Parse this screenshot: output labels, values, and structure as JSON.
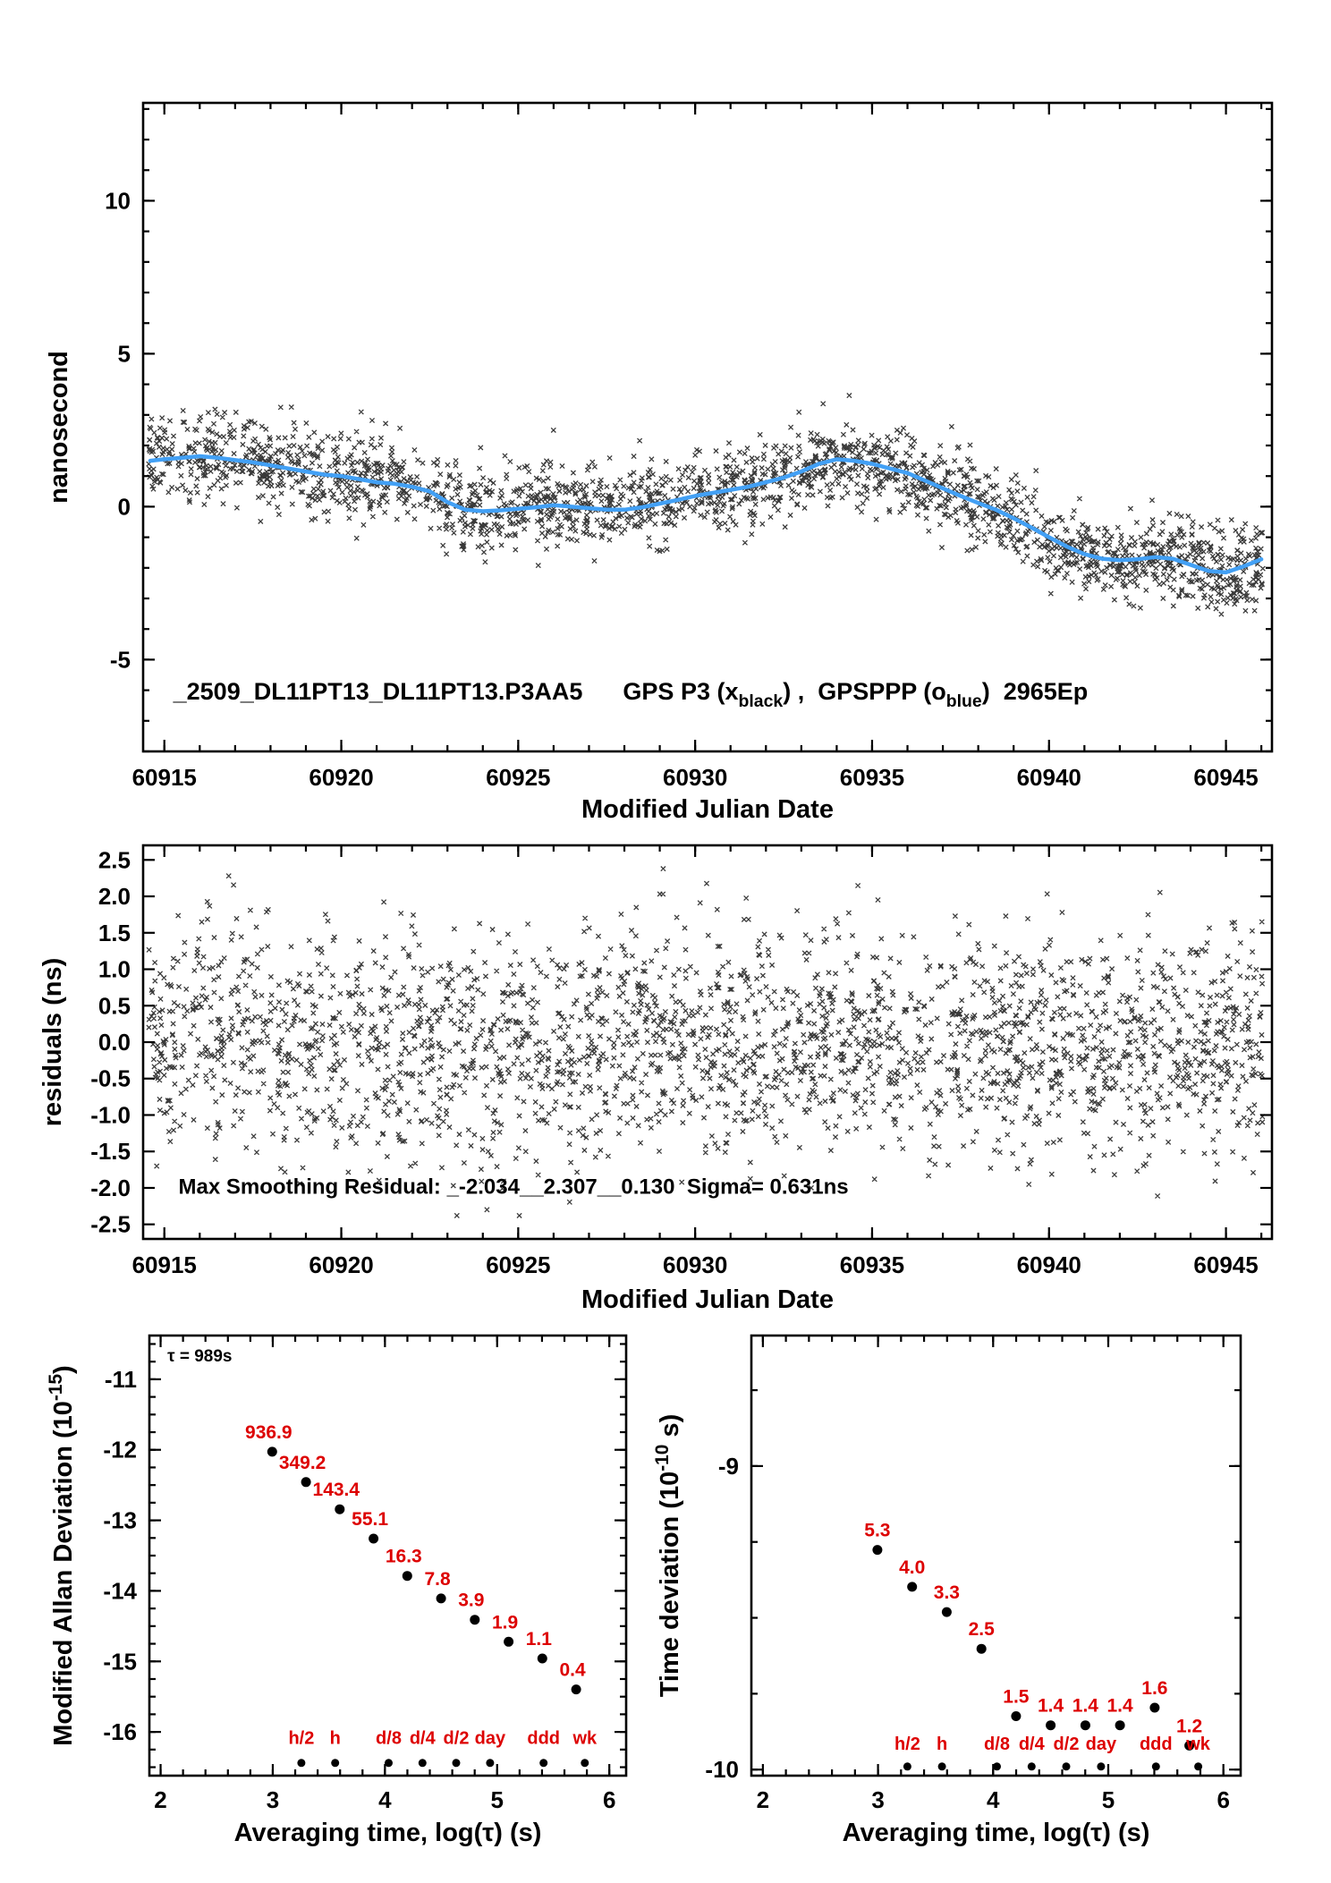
{
  "page": {
    "background": "#ffffff"
  },
  "colors": {
    "marker": "#161616",
    "smooth_line": "#42a0f5",
    "red": "#dd0000",
    "axis": "#000000",
    "point": "#000000"
  },
  "chart_data": [
    {
      "id": "gps-comparison",
      "type": "scatter",
      "marker": "x",
      "xlabel": "Modified Julian Date",
      "ylabel": "nanosecond",
      "xlim": [
        60914.4,
        60946.3
      ],
      "ylim": [
        -8.0,
        13.2
      ],
      "xticks": {
        "values": [
          60915,
          60920,
          60925,
          60930,
          60935,
          60940,
          60945
        ],
        "labels": [
          "60915",
          "60920",
          "60925",
          "60930",
          "60935",
          "60940",
          "60945"
        ],
        "minor_step": 1
      },
      "yticks": {
        "values": [
          -5,
          0,
          5,
          10
        ],
        "labels": [
          "-5",
          "0",
          "5",
          "10"
        ],
        "minor_step": 1
      },
      "caption": {
        "x": 60915.25,
        "y": -6.3,
        "segments": [
          {
            "text": "_2509_DL11PT13_DL11PT13.P3AA5      GPS P3 (x"
          },
          {
            "text": "black",
            "sub": true
          },
          {
            "text": ") ,  GPSPPP (o"
          },
          {
            "text": "blue",
            "sub": true
          },
          {
            "text": ")  2965Ep"
          }
        ]
      },
      "scatter": {
        "n": 2400,
        "sigma": 0.66,
        "seed": 20250914,
        "x_min": 60914.55,
        "x_max": 60946.05
      },
      "smooth_line": [
        [
          60914.6,
          1.5
        ],
        [
          60915,
          1.55
        ],
        [
          60915.5,
          1.6
        ],
        [
          60916,
          1.65
        ],
        [
          60916.5,
          1.6
        ],
        [
          60917,
          1.52
        ],
        [
          60917.5,
          1.45
        ],
        [
          60918,
          1.35
        ],
        [
          60918.5,
          1.25
        ],
        [
          60919,
          1.15
        ],
        [
          60919.5,
          1.05
        ],
        [
          60920,
          1.0
        ],
        [
          60920.5,
          0.9
        ],
        [
          60921,
          0.8
        ],
        [
          60921.5,
          0.75
        ],
        [
          60922,
          0.65
        ],
        [
          60922.5,
          0.5
        ],
        [
          60923,
          0.15
        ],
        [
          60923.5,
          -0.1
        ],
        [
          60924,
          -0.15
        ],
        [
          60924.5,
          -0.12
        ],
        [
          60925,
          -0.07
        ],
        [
          60925.5,
          -0.02
        ],
        [
          60926,
          0.05
        ],
        [
          60926.5,
          0.0
        ],
        [
          60927,
          -0.05
        ],
        [
          60927.5,
          -0.1
        ],
        [
          60928,
          -0.1
        ],
        [
          60928.5,
          -0.02
        ],
        [
          60929,
          0.1
        ],
        [
          60929.5,
          0.22
        ],
        [
          60930,
          0.35
        ],
        [
          60930.5,
          0.45
        ],
        [
          60931,
          0.55
        ],
        [
          60931.5,
          0.65
        ],
        [
          60932,
          0.8
        ],
        [
          60932.5,
          0.95
        ],
        [
          60933,
          1.15
        ],
        [
          60933.5,
          1.4
        ],
        [
          60934,
          1.55
        ],
        [
          60934.5,
          1.5
        ],
        [
          60935,
          1.4
        ],
        [
          60935.5,
          1.25
        ],
        [
          60936,
          1.1
        ],
        [
          60936.5,
          0.85
        ],
        [
          60937,
          0.6
        ],
        [
          60937.5,
          0.35
        ],
        [
          60938,
          0.12
        ],
        [
          60938.5,
          -0.1
        ],
        [
          60939,
          -0.38
        ],
        [
          60939.5,
          -0.68
        ],
        [
          60940,
          -1.0
        ],
        [
          60940.5,
          -1.3
        ],
        [
          60941,
          -1.55
        ],
        [
          60941.5,
          -1.7
        ],
        [
          60942,
          -1.75
        ],
        [
          60942.5,
          -1.72
        ],
        [
          60943,
          -1.65
        ],
        [
          60943.5,
          -1.7
        ],
        [
          60944,
          -1.9
        ],
        [
          60944.5,
          -2.1
        ],
        [
          60945,
          -2.15
        ],
        [
          60945.5,
          -1.95
        ],
        [
          60946,
          -1.72
        ]
      ]
    },
    {
      "id": "residuals",
      "type": "scatter",
      "marker": "x",
      "xlabel": "Modified Julian Date",
      "ylabel": "residuals (ns)",
      "xlim": [
        60914.4,
        60946.3
      ],
      "ylim": [
        -2.7,
        2.7
      ],
      "xticks": {
        "values": [
          60915,
          60920,
          60925,
          60930,
          60935,
          60940,
          60945
        ],
        "labels": [
          "60915",
          "60920",
          "60925",
          "60930",
          "60935",
          "60940",
          "60945"
        ],
        "minor_step": 1
      },
      "yticks": {
        "values": [
          -2.5,
          -2.0,
          -1.5,
          -1.0,
          -0.5,
          0.0,
          0.5,
          1.0,
          1.5,
          2.0,
          2.5
        ],
        "labels": [
          "-2.5",
          "-2.0",
          "-1.5",
          "-1.0",
          "-0.5",
          "0.0",
          "0.5",
          "1.0",
          "1.5",
          "2.0",
          "2.5"
        ]
      },
      "annotation": {
        "text": "Max Smoothing Residual: _-2.034__2.307__0.130  Sigma= 0.631ns",
        "x": 60915.4,
        "y": -2.08
      },
      "scatter": {
        "n": 2600,
        "sigma": 0.78,
        "clip": 2.38,
        "seed": 7771,
        "x_min": 60914.55,
        "x_max": 60946.05
      }
    },
    {
      "id": "mdev",
      "type": "scatter",
      "marker": "o",
      "xlabel": "Averaging time, log(τ) (s)",
      "ylabel_segments": [
        {
          "text": "Modified Allan Deviation (10"
        },
        {
          "text": "-15",
          "sup": true
        },
        {
          "text": ")"
        }
      ],
      "xlim": [
        1.9,
        6.15
      ],
      "ylim": [
        -16.62,
        -10.38
      ],
      "xticks": {
        "values": [
          2,
          3,
          4,
          5,
          6
        ],
        "labels": [
          "2",
          "3",
          "4",
          "5",
          "6"
        ],
        "minor_step": 0.2
      },
      "yticks": {
        "values": [
          -16,
          -15,
          -14,
          -13,
          -12,
          -11
        ],
        "labels": [
          "-16",
          "-15",
          "-14",
          "-13",
          "-12",
          "-11"
        ],
        "minor_step": 0.25
      },
      "tau_annotation": {
        "text": "τ = 989s",
        "x": 2.06,
        "y": -10.75
      },
      "points": [
        {
          "x": 2.995,
          "y": -12.028,
          "label": "936.9"
        },
        {
          "x": 3.296,
          "y": -12.457,
          "label": "349.2"
        },
        {
          "x": 3.597,
          "y": -12.843,
          "label": "143.4"
        },
        {
          "x": 3.898,
          "y": -13.259,
          "label": "55.1"
        },
        {
          "x": 4.199,
          "y": -13.788,
          "label": "16.3"
        },
        {
          "x": 4.5,
          "y": -14.108,
          "label": "7.8"
        },
        {
          "x": 4.801,
          "y": -14.409,
          "label": "3.9"
        },
        {
          "x": 5.102,
          "y": -14.721,
          "label": "1.9"
        },
        {
          "x": 5.403,
          "y": -14.959,
          "label": "1.1"
        },
        {
          "x": 5.704,
          "y": -15.398,
          "label": "0.4"
        }
      ],
      "time_markers": [
        {
          "x": 3.255,
          "label": "h/2"
        },
        {
          "x": 3.556,
          "label": "h"
        },
        {
          "x": 4.033,
          "label": "d/8"
        },
        {
          "x": 4.334,
          "label": "d/4"
        },
        {
          "x": 4.635,
          "label": "d/2"
        },
        {
          "x": 4.937,
          "label": "day"
        },
        {
          "x": 5.414,
          "label": "ddd"
        },
        {
          "x": 5.782,
          "label": "wk"
        }
      ],
      "marker_row_y": -16.44,
      "marker_label_y": -16.17
    },
    {
      "id": "tdev",
      "type": "scatter",
      "marker": "o",
      "xlabel": "Averaging time, log(τ) (s)",
      "ylabel_segments": [
        {
          "text": "Time deviation (10"
        },
        {
          "text": "-10",
          "sup": true
        },
        {
          "text": " s)"
        }
      ],
      "xlim": [
        1.9,
        6.15
      ],
      "ylim": [
        -10.02,
        -8.57
      ],
      "xticks": {
        "values": [
          2,
          3,
          4,
          5,
          6
        ],
        "labels": [
          "2",
          "3",
          "4",
          "5",
          "6"
        ],
        "minor_step": 0.2
      },
      "yticks": {
        "values": [
          -10,
          -9
        ],
        "labels": [
          "-10",
          "-9"
        ],
        "minor_step": 0.25
      },
      "points": [
        {
          "x": 2.995,
          "y": -9.276,
          "label": "5.3"
        },
        {
          "x": 3.296,
          "y": -9.398,
          "label": "4.0"
        },
        {
          "x": 3.597,
          "y": -9.481,
          "label": "3.3"
        },
        {
          "x": 3.898,
          "y": -9.602,
          "label": "2.5"
        },
        {
          "x": 4.199,
          "y": -9.824,
          "label": "1.5"
        },
        {
          "x": 4.5,
          "y": -9.854,
          "label": "1.4"
        },
        {
          "x": 4.801,
          "y": -9.854,
          "label": "1.4"
        },
        {
          "x": 5.102,
          "y": -9.854,
          "label": "1.4"
        },
        {
          "x": 5.403,
          "y": -9.796,
          "label": "1.6"
        },
        {
          "x": 5.704,
          "y": -9.921,
          "label": "1.2"
        }
      ],
      "time_markers": [
        {
          "x": 3.255,
          "label": "h/2"
        },
        {
          "x": 3.556,
          "label": "h"
        },
        {
          "x": 4.033,
          "label": "d/8"
        },
        {
          "x": 4.334,
          "label": "d/4"
        },
        {
          "x": 4.635,
          "label": "d/2"
        },
        {
          "x": 4.937,
          "label": "day"
        },
        {
          "x": 5.414,
          "label": "ddd"
        },
        {
          "x": 5.782,
          "label": "wk"
        }
      ],
      "marker_row_y": -9.99,
      "marker_label_y": -9.935
    }
  ]
}
